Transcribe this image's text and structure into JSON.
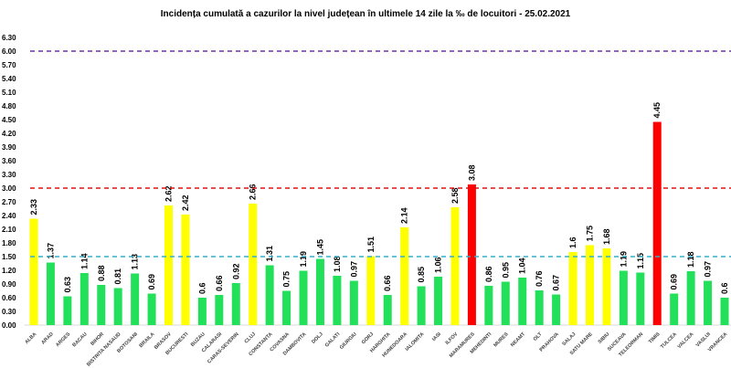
{
  "chart_data": {
    "type": "bar",
    "title": "Incidența cumulată a cazurilor la nivel județean în ultimele 14 zile   la ‰ de locuitori  - 25.02.2021",
    "xlabel": "",
    "ylabel": "",
    "ylim": [
      0,
      6.3
    ],
    "ytick_step": 0.3,
    "grid": false,
    "categories": [
      "ALBA",
      "ARAD",
      "ARGES",
      "BACAU",
      "BIHOR",
      "BISTRITA NASAUD",
      "BOTOSANI",
      "BRAILA",
      "BRASOV",
      "BUCURESTI",
      "BUZAU",
      "CALARASI",
      "CARAS-SEVERIN",
      "CLUJ",
      "CONSTANTA",
      "COVASNA",
      "DAMBOVITA",
      "DOLJ",
      "GALATI",
      "GIURGIU",
      "GORJ",
      "HARGHITA",
      "HUNEDOARA",
      "IALOMITA",
      "IASI",
      "ILFOV",
      "MARAMURES",
      "MEHEDINTI",
      "MURES",
      "NEAMT",
      "OLT",
      "PRAHOVA",
      "SALAJ",
      "SATU MARE",
      "SIBIU",
      "SUCEAVA",
      "TELEORMAN",
      "TIMIS",
      "TULCEA",
      "VALCEA",
      "VASLUI",
      "VRANCEA"
    ],
    "values": [
      2.33,
      1.37,
      0.63,
      1.14,
      0.88,
      0.81,
      1.13,
      0.69,
      2.62,
      2.42,
      0.6,
      0.66,
      0.92,
      2.66,
      1.31,
      0.75,
      1.19,
      1.45,
      1.08,
      0.97,
      1.51,
      0.66,
      2.14,
      0.85,
      1.06,
      2.58,
      3.08,
      0.86,
      0.95,
      1.04,
      0.76,
      0.67,
      1.6,
      1.75,
      1.68,
      1.19,
      1.15,
      4.45,
      0.69,
      1.18,
      0.97,
      0.6
    ],
    "data_labels": [
      "2.33",
      "1.37",
      "0.63",
      "1.14",
      "0.88",
      "0.81",
      "1.13",
      "0.69",
      "2.62",
      "2.42",
      "0.6",
      "0.66",
      "0.92",
      "2.66",
      "1.31",
      "0.75",
      "1.19",
      "1.45",
      "1.08",
      "0.97",
      "1.51",
      "0.66",
      "2.14",
      "0.85",
      "1.06",
      "2.58",
      "3.08",
      "0.86",
      "0.95",
      "1.04",
      "0.76",
      "0.67",
      "1.6",
      "1.75",
      "1.68",
      "1.19",
      "1.15",
      "4.45",
      "0.69",
      "1.18",
      "0.97",
      "0.6"
    ],
    "color_thresholds": {
      "green_below": 1.5,
      "yellow_below": 3.0,
      "red_above": 3.0
    },
    "colors": {
      "green": "#22e05a",
      "yellow": "#ffff00",
      "red": "#ff0000"
    },
    "reference_lines": [
      {
        "value": 6.0,
        "color": "#7030a0",
        "style": "dashed"
      },
      {
        "value": 3.0,
        "color": "#e01010",
        "style": "dashed"
      },
      {
        "value": 1.5,
        "color": "#30b0c8",
        "style": "dashed"
      }
    ]
  }
}
